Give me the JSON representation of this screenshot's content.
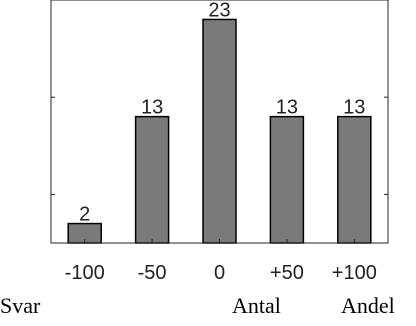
{
  "chart_data": {
    "type": "bar",
    "categories": [
      "-100",
      "-50",
      "0",
      "+50",
      "+100"
    ],
    "values": [
      2,
      13,
      23,
      13,
      13
    ],
    "data_labels": [
      "2",
      "13",
      "23",
      "13",
      "13"
    ],
    "title": "",
    "xlabel": "",
    "ylabel": "",
    "ylim": [
      0,
      25
    ],
    "y_ticks": [
      5,
      15
    ],
    "y_tick_labels_shown": false,
    "grid": false,
    "bar_color": "#7a7a7a",
    "bar_edge_color": "#000000",
    "axes_color": "#262626"
  },
  "table_header": {
    "col1": "Svar",
    "col2": "Antal",
    "col3": "Andel"
  }
}
